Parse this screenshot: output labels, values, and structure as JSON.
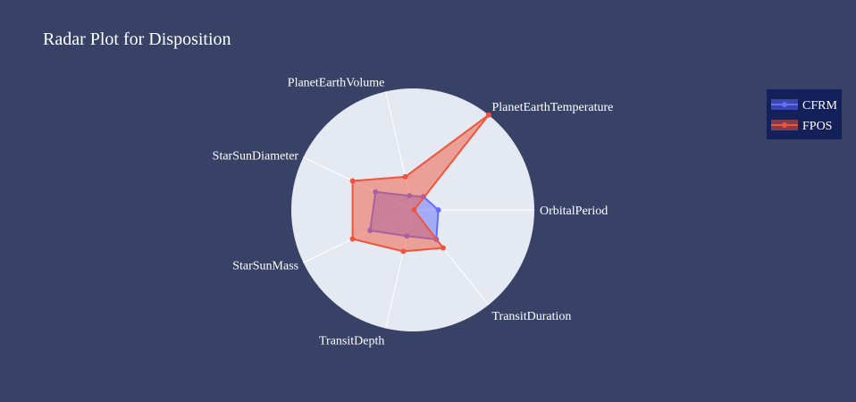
{
  "colors": {
    "page_background": "#374266",
    "polar_background": "#E5E9F2",
    "grid": "#FFFFFF",
    "legend_background": "#13205A",
    "text": "#FFFFFF"
  },
  "chart_data": {
    "type": "radar",
    "title": "Radar Plot for Disposition",
    "axes": [
      "OrbitalPeriod",
      "PlanetEarthTemperature",
      "PlanetEarthVolume",
      "StarSunDiameter",
      "StarSunMass",
      "TransitDepth",
      "TransitDuration"
    ],
    "radial_range": [
      0,
      1
    ],
    "grid": true,
    "legend_position": "top-right",
    "series": [
      {
        "name": "CFRM",
        "color": "#636EFA",
        "fill_opacity": 0.5,
        "values": [
          0.21,
          0.14,
          0.12,
          0.34,
          0.39,
          0.22,
          0.31
        ]
      },
      {
        "name": "FPOS",
        "color": "#EF553B",
        "fill_opacity": 0.5,
        "values": [
          0.01,
          1.0,
          0.28,
          0.55,
          0.55,
          0.35,
          0.4
        ]
      }
    ]
  }
}
